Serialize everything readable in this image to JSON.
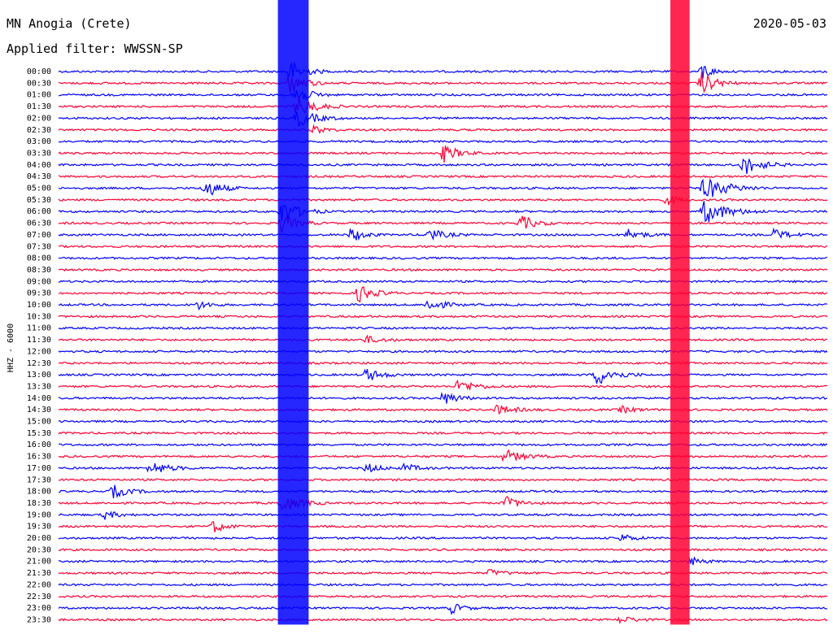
{
  "header": {
    "station": "MN Anogia (Crete)",
    "filter": "Applied filter: WWSSN-SP",
    "date": "2020-05-03"
  },
  "chart_data": {
    "type": "line",
    "title": "MN Anogia (Crete)",
    "subtitle": "Applied filter: WWSSN-SP",
    "date": "2020-05-03",
    "ylabel": "HHZ - 6000",
    "trace_colors": [
      "#0000ff",
      "#ff0033"
    ],
    "row_labels": [
      "00:00",
      "00:30",
      "01:00",
      "01:30",
      "02:00",
      "02:30",
      "03:00",
      "03:30",
      "04:00",
      "04:30",
      "05:00",
      "05:30",
      "06:00",
      "06:30",
      "07:00",
      "07:30",
      "08:00",
      "08:30",
      "09:00",
      "09:30",
      "10:00",
      "10:30",
      "11:00",
      "11:30",
      "12:00",
      "12:30",
      "13:00",
      "13:30",
      "14:00",
      "14:30",
      "15:00",
      "15:30",
      "16:00",
      "16:30",
      "17:00",
      "17:30",
      "18:00",
      "18:30",
      "19:00",
      "19:30",
      "20:00",
      "20:30",
      "21:00",
      "21:30",
      "22:00",
      "22:30",
      "23:00",
      "23:30"
    ],
    "events": [
      {
        "x": 0.3,
        "row": 0,
        "amp": 1.0,
        "len": 0.05
      },
      {
        "x": 0.3,
        "row": 1,
        "amp": 1.0,
        "len": 0.05
      },
      {
        "x": 0.305,
        "row": 2,
        "amp": 1.0,
        "len": 0.05
      },
      {
        "x": 0.31,
        "row": 3,
        "amp": 0.9,
        "len": 0.06
      },
      {
        "x": 0.31,
        "row": 4,
        "amp": 0.8,
        "len": 0.06
      },
      {
        "x": 0.33,
        "row": 5,
        "amp": 0.4,
        "len": 0.04
      },
      {
        "x": 0.835,
        "row": 0,
        "amp": 1.0,
        "len": 0.03
      },
      {
        "x": 0.835,
        "row": 1,
        "amp": 1.0,
        "len": 0.05
      },
      {
        "x": 0.84,
        "row": 10,
        "amp": 1.0,
        "len": 0.08
      },
      {
        "x": 0.84,
        "row": 12,
        "amp": 1.0,
        "len": 0.08
      },
      {
        "x": 0.89,
        "row": 8,
        "amp": 0.9,
        "len": 0.06
      },
      {
        "x": 0.19,
        "row": 10,
        "amp": 0.9,
        "len": 0.05
      },
      {
        "x": 0.29,
        "row": 12,
        "amp": 1.0,
        "len": 0.06
      },
      {
        "x": 0.29,
        "row": 13,
        "amp": 0.8,
        "len": 0.05
      },
      {
        "x": 0.38,
        "row": 14,
        "amp": 0.7,
        "len": 0.04
      },
      {
        "x": 0.5,
        "row": 7,
        "amp": 0.8,
        "len": 0.05
      },
      {
        "x": 0.6,
        "row": 13,
        "amp": 0.7,
        "len": 0.05
      },
      {
        "x": 0.48,
        "row": 14,
        "amp": 0.6,
        "len": 0.05
      },
      {
        "x": 0.74,
        "row": 14,
        "amp": 0.5,
        "len": 0.05
      },
      {
        "x": 0.79,
        "row": 11,
        "amp": 0.5,
        "len": 0.04
      },
      {
        "x": 0.93,
        "row": 14,
        "amp": 0.5,
        "len": 0.05
      },
      {
        "x": 0.39,
        "row": 19,
        "amp": 0.8,
        "len": 0.05
      },
      {
        "x": 0.48,
        "row": 20,
        "amp": 0.6,
        "len": 0.05
      },
      {
        "x": 0.18,
        "row": 20,
        "amp": 0.4,
        "len": 0.04
      },
      {
        "x": 0.4,
        "row": 23,
        "amp": 0.3,
        "len": 0.06
      },
      {
        "x": 0.7,
        "row": 26,
        "amp": 0.9,
        "len": 0.06
      },
      {
        "x": 0.4,
        "row": 26,
        "amp": 0.6,
        "len": 0.05
      },
      {
        "x": 0.52,
        "row": 27,
        "amp": 0.6,
        "len": 0.06
      },
      {
        "x": 0.5,
        "row": 28,
        "amp": 0.6,
        "len": 0.05
      },
      {
        "x": 0.57,
        "row": 29,
        "amp": 0.4,
        "len": 0.06
      },
      {
        "x": 0.73,
        "row": 29,
        "amp": 0.3,
        "len": 0.05
      },
      {
        "x": 0.12,
        "row": 34,
        "amp": 0.6,
        "len": 0.06
      },
      {
        "x": 0.58,
        "row": 33,
        "amp": 0.6,
        "len": 0.06
      },
      {
        "x": 0.4,
        "row": 34,
        "amp": 0.4,
        "len": 0.05
      },
      {
        "x": 0.45,
        "row": 34,
        "amp": 0.4,
        "len": 0.04
      },
      {
        "x": 0.07,
        "row": 36,
        "amp": 0.6,
        "len": 0.05
      },
      {
        "x": 0.29,
        "row": 37,
        "amp": 0.8,
        "len": 0.06
      },
      {
        "x": 0.58,
        "row": 37,
        "amp": 0.6,
        "len": 0.05
      },
      {
        "x": 0.2,
        "row": 39,
        "amp": 0.6,
        "len": 0.04
      },
      {
        "x": 0.06,
        "row": 38,
        "amp": 0.4,
        "len": 0.04
      },
      {
        "x": 0.73,
        "row": 40,
        "amp": 0.4,
        "len": 0.04
      },
      {
        "x": 0.82,
        "row": 42,
        "amp": 0.4,
        "len": 0.04
      },
      {
        "x": 0.56,
        "row": 43,
        "amp": 0.3,
        "len": 0.05
      },
      {
        "x": 0.51,
        "row": 46,
        "amp": 0.5,
        "len": 0.04
      },
      {
        "x": 0.73,
        "row": 47,
        "amp": 0.3,
        "len": 0.05
      }
    ],
    "continuous_bands": [
      {
        "x_from": 0.285,
        "x_to": 0.325,
        "row_from": 0,
        "row_to": 47,
        "color": "#0000ff"
      },
      {
        "x_from": 0.795,
        "x_to": 0.82,
        "row_from": 0,
        "row_to": 47,
        "color": "#ff0033"
      }
    ]
  }
}
